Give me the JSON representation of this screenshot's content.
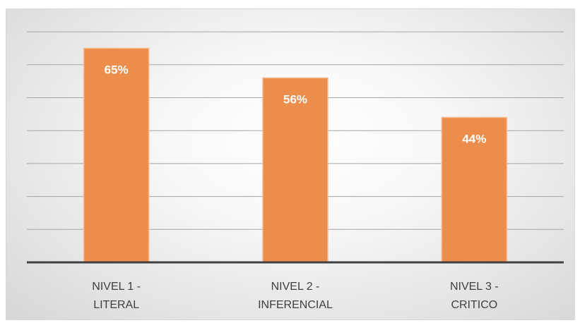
{
  "chart_data": {
    "type": "bar",
    "title": "",
    "xlabel": "",
    "ylabel": "",
    "categories": [
      [
        "NIVEL 1 -",
        "LITERAL"
      ],
      [
        "NIVEL 2 -",
        "INFERENCIAL"
      ],
      [
        "NIVEL 3 -",
        "CRITICO"
      ]
    ],
    "values": [
      65,
      56,
      44
    ],
    "data_labels": [
      "65%",
      "56%",
      "44%"
    ],
    "ylim": [
      0,
      70
    ],
    "gridlines": true,
    "legend": "none",
    "colors": {
      "bar": "#ED8D4B",
      "bar_border": "#F5B98E",
      "grid": "#a6a6a6",
      "axis": "#404040"
    }
  }
}
